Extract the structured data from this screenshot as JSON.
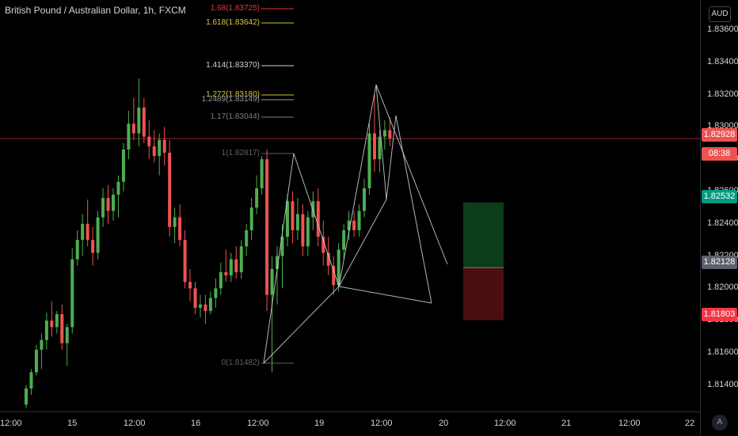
{
  "symbol_title": "British Pound / Australian Dollar, 1h, FXCM",
  "currency_button": "AUD",
  "auto_button": "A",
  "colors": {
    "up": "#26a69a",
    "up_bright": "#4caf50",
    "down": "#ef5350",
    "pattern_line": "#d1d4dc",
    "price_line": "#8e2a2a",
    "target_zone": "#0b3d1a",
    "stop_zone": "#4a0f0f"
  },
  "price_axis": {
    "ticks": [
      "1.83600",
      "1.83400",
      "1.83200",
      "1.83000",
      "1.82800",
      "1.82600",
      "1.82400",
      "1.82200",
      "1.82000",
      "1.81800",
      "1.81600",
      "1.81400"
    ],
    "badges": [
      {
        "label": "1.82928",
        "color": "#ef5350",
        "kind": "last-price"
      },
      {
        "label": "08:38",
        "color": "#ef5350",
        "kind": "countdown"
      },
      {
        "label": "1.82532",
        "color": "#089981",
        "kind": "target"
      },
      {
        "label": "1.82128",
        "color": "#5d606b",
        "kind": "entry"
      },
      {
        "label": "1.81803",
        "color": "#f23645",
        "kind": "stop"
      }
    ]
  },
  "time_axis": {
    "labels": [
      "12:00",
      "15",
      "12:00",
      "16",
      "12:00",
      "19",
      "12:00",
      "20",
      "12:00",
      "21",
      "12:00",
      "22"
    ]
  },
  "fibonacci": {
    "levels": [
      {
        "label": "1.68(1.83725)",
        "color": "#e53935"
      },
      {
        "label": "1.618(1.83642)",
        "color": "#d4c93a"
      },
      {
        "label": "1.414(1.83370)",
        "color": "#d1d4dc"
      },
      {
        "label": "1.272(1.83180)",
        "color": "#d4c93a"
      },
      {
        "label": "1.2489(1.83149)",
        "color": "#9598a1"
      },
      {
        "label": "1.17(1.83044)",
        "color": "#787b86"
      },
      {
        "label": "1(1.82817)",
        "color": "#5d606b"
      },
      {
        "label": "0(1.81482)",
        "color": "#5d606b"
      }
    ]
  },
  "chart_data": {
    "type": "candlestick",
    "title": "British Pound / Australian Dollar, 1h, FXCM",
    "y_range": [
      1.8124,
      1.8374
    ],
    "last_price": 1.82928,
    "candles": [
      [
        1.8128,
        1.814,
        1.8126,
        1.8138
      ],
      [
        1.8138,
        1.815,
        1.8134,
        1.8148
      ],
      [
        1.8148,
        1.8165,
        1.8146,
        1.8162
      ],
      [
        1.8162,
        1.8172,
        1.815,
        1.8168
      ],
      [
        1.8168,
        1.8185,
        1.8162,
        1.818
      ],
      [
        1.818,
        1.8192,
        1.817,
        1.8176
      ],
      [
        1.8176,
        1.8186,
        1.8172,
        1.8184
      ],
      [
        1.8184,
        1.819,
        1.8162,
        1.8166
      ],
      [
        1.8166,
        1.8178,
        1.8152,
        1.8176
      ],
      [
        1.8176,
        1.8225,
        1.8172,
        1.8218
      ],
      [
        1.8218,
        1.8236,
        1.8214,
        1.823
      ],
      [
        1.823,
        1.8246,
        1.822,
        1.824
      ],
      [
        1.824,
        1.8255,
        1.8226,
        1.823
      ],
      [
        1.823,
        1.8238,
        1.8214,
        1.8222
      ],
      [
        1.8222,
        1.8248,
        1.8218,
        1.8244
      ],
      [
        1.8244,
        1.8262,
        1.8238,
        1.8256
      ],
      [
        1.8256,
        1.8264,
        1.824,
        1.8248
      ],
      [
        1.8248,
        1.8262,
        1.8242,
        1.8258
      ],
      [
        1.8258,
        1.827,
        1.8244,
        1.8266
      ],
      [
        1.8266,
        1.829,
        1.826,
        1.8286
      ],
      [
        1.8286,
        1.831,
        1.828,
        1.8302
      ],
      [
        1.8302,
        1.8318,
        1.8292,
        1.8296
      ],
      [
        1.8296,
        1.833,
        1.8288,
        1.8312
      ],
      [
        1.8312,
        1.8318,
        1.829,
        1.8294
      ],
      [
        1.8294,
        1.8304,
        1.828,
        1.8288
      ],
      [
        1.8288,
        1.8298,
        1.8278,
        1.8282
      ],
      [
        1.8282,
        1.8296,
        1.827,
        1.8292
      ],
      [
        1.8292,
        1.83,
        1.8276,
        1.8284
      ],
      [
        1.8284,
        1.8292,
        1.8232,
        1.8238
      ],
      [
        1.8238,
        1.825,
        1.8228,
        1.8244
      ],
      [
        1.8244,
        1.8252,
        1.8226,
        1.823
      ],
      [
        1.823,
        1.8236,
        1.82,
        1.8204
      ],
      [
        1.8204,
        1.8212,
        1.8192,
        1.82
      ],
      [
        1.82,
        1.8204,
        1.8184,
        1.8188
      ],
      [
        1.8188,
        1.8196,
        1.8182,
        1.819
      ],
      [
        1.819,
        1.8196,
        1.8178,
        1.8186
      ],
      [
        1.8186,
        1.8198,
        1.8184,
        1.8194
      ],
      [
        1.8194,
        1.8206,
        1.8188,
        1.82
      ],
      [
        1.82,
        1.8216,
        1.8196,
        1.821
      ],
      [
        1.821,
        1.8224,
        1.8204,
        1.8208
      ],
      [
        1.8208,
        1.8222,
        1.8204,
        1.8218
      ],
      [
        1.8218,
        1.8226,
        1.8206,
        1.821
      ],
      [
        1.821,
        1.823,
        1.8206,
        1.8226
      ],
      [
        1.8226,
        1.824,
        1.822,
        1.8236
      ],
      [
        1.8236,
        1.8256,
        1.823,
        1.825
      ],
      [
        1.825,
        1.827,
        1.8246,
        1.8262
      ],
      [
        1.8262,
        1.8282,
        1.8258,
        1.828
      ],
      [
        1.828,
        1.8286,
        1.8186,
        1.8196
      ],
      [
        1.8196,
        1.822,
        1.8148,
        1.8212
      ],
      [
        1.8212,
        1.8226,
        1.819,
        1.822
      ],
      [
        1.822,
        1.824,
        1.82,
        1.8232
      ],
      [
        1.8232,
        1.8258,
        1.8226,
        1.8254
      ],
      [
        1.8254,
        1.826,
        1.8228,
        1.8236
      ],
      [
        1.8236,
        1.8256,
        1.823,
        1.8246
      ],
      [
        1.8246,
        1.8252,
        1.822,
        1.8226
      ],
      [
        1.8226,
        1.8248,
        1.822,
        1.8244
      ],
      [
        1.8244,
        1.826,
        1.8236,
        1.8254
      ],
      [
        1.8254,
        1.8262,
        1.8226,
        1.8232
      ],
      [
        1.8232,
        1.8242,
        1.8214,
        1.8222
      ],
      [
        1.8222,
        1.8232,
        1.8208,
        1.8214
      ],
      [
        1.8214,
        1.822,
        1.8196,
        1.8202
      ],
      [
        1.8202,
        1.8228,
        1.8198,
        1.8224
      ],
      [
        1.8224,
        1.824,
        1.8218,
        1.8236
      ],
      [
        1.8236,
        1.8248,
        1.823,
        1.8242
      ],
      [
        1.8242,
        1.8248,
        1.8232,
        1.8236
      ],
      [
        1.8236,
        1.8252,
        1.8232,
        1.8248
      ],
      [
        1.8248,
        1.8268,
        1.8244,
        1.8262
      ],
      [
        1.8262,
        1.8302,
        1.8258,
        1.8296
      ],
      [
        1.8296,
        1.832,
        1.8272,
        1.828
      ],
      [
        1.828,
        1.8298,
        1.8272,
        1.8294
      ],
      [
        1.8294,
        1.8304,
        1.8286,
        1.8298
      ],
      [
        1.8298,
        1.8306,
        1.8288,
        1.8293
      ]
    ]
  }
}
